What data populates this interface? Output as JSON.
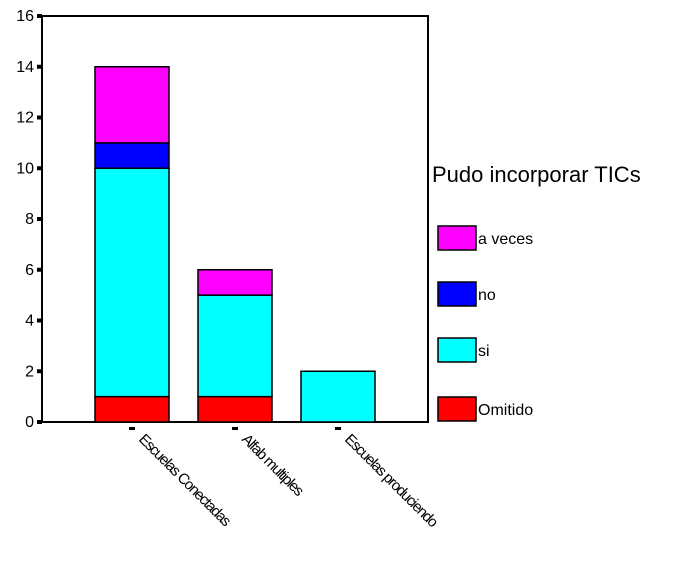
{
  "chart_data": {
    "type": "bar",
    "stacked": true,
    "title": "",
    "xlabel": "",
    "ylabel": "",
    "ylim": [
      0,
      16
    ],
    "yticks": [
      0,
      2,
      4,
      6,
      8,
      10,
      12,
      14,
      16
    ],
    "categories": [
      "Escuelas Conectadas",
      "Alfab multiples",
      "Escuelas produciendo"
    ],
    "legend_title": "Pudo incorporar TICs",
    "legend_position": "right",
    "grid": false,
    "series": [
      {
        "name": "Omitido",
        "color": "#ff0000",
        "values": [
          1,
          1,
          0
        ]
      },
      {
        "name": "si",
        "color": "#00ffff",
        "values": [
          9,
          4,
          2
        ]
      },
      {
        "name": "no",
        "color": "#0000ff",
        "values": [
          1,
          0,
          0
        ]
      },
      {
        "name": "a veces",
        "color": "#ff00ff",
        "values": [
          3,
          1,
          0
        ]
      }
    ],
    "legend_order": [
      "a veces",
      "no",
      "si",
      "Omitido"
    ]
  }
}
